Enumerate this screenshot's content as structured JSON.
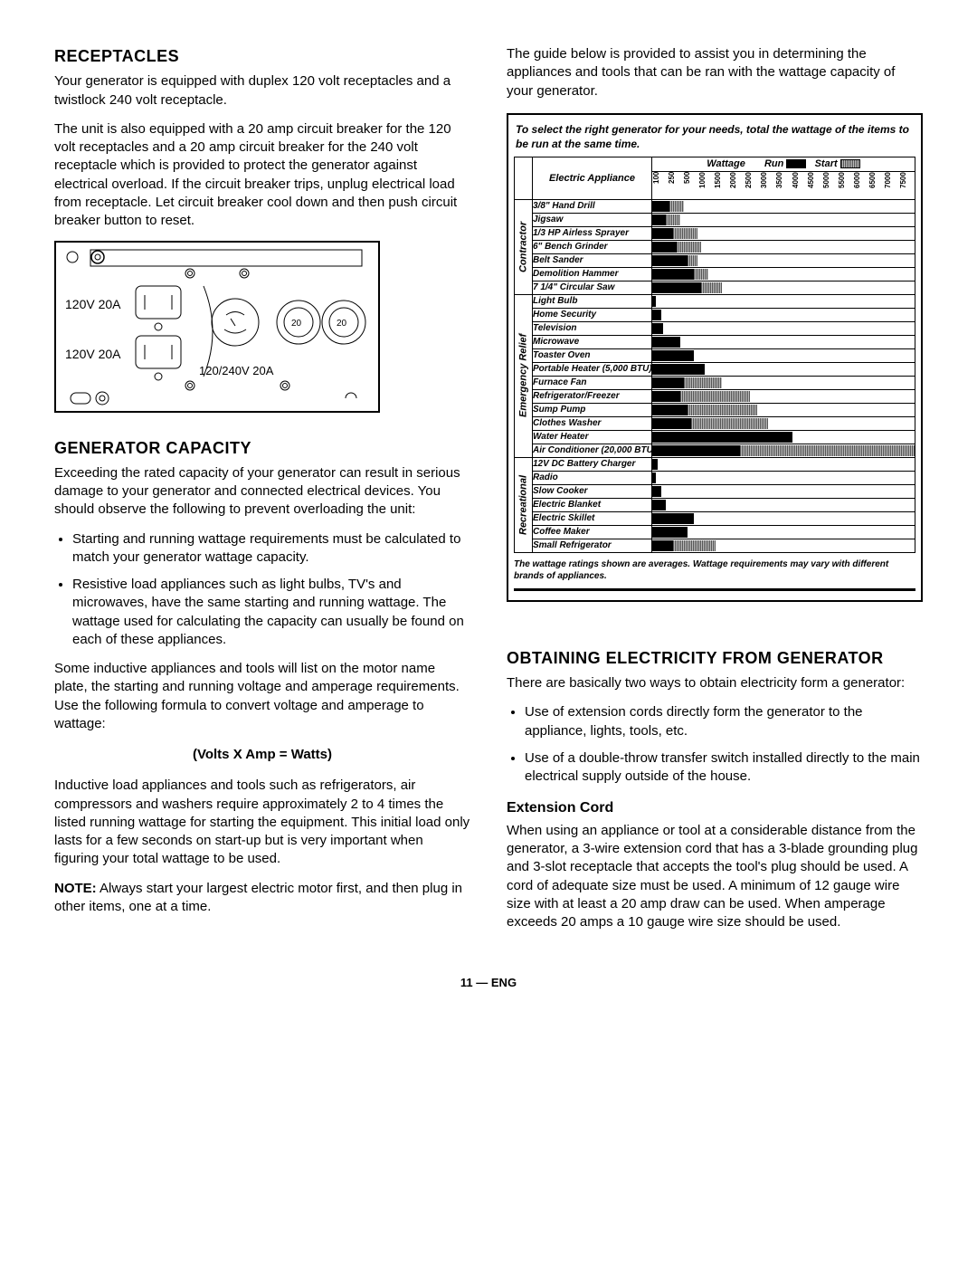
{
  "left": {
    "h_receptacles": "RECEPTACLES",
    "p1": "Your generator is equipped with duplex 120 volt receptacles and a twistlock 240 volt receptacle.",
    "p2": "The unit is also equipped with a 20 amp circuit breaker for the 120 volt receptacles and a 20 amp circuit breaker for the 240 volt receptacle which is provided to protect the generator against electrical overload. If the circuit breaker trips, unplug electrical load from receptacle. Let circuit breaker cool down and then push circuit breaker button to reset.",
    "diagram": {
      "label_120a": "120V 20A",
      "label_120b": "120V 20A",
      "label_240": "120/240V 20A"
    },
    "h_capacity": "GENERATOR CAPACITY",
    "p3": "Exceeding the rated capacity of your generator can result in serious damage to your generator and connected electrical devices. You should observe the following to prevent overloading the unit:",
    "bullets1": [
      "Starting and running wattage requirements must be calculated to match your generator wattage capacity.",
      "Resistive load appliances such as light bulbs, TV's and microwaves, have the same starting and running wattage. The wattage used for calculating the capacity can usually be found on each of these appliances."
    ],
    "p4": "Some inductive appliances and tools will list on the motor name plate, the starting and running voltage and amperage requirements. Use the following formula to convert voltage and amperage to wattage:",
    "formula": "(Volts X Amp = Watts)",
    "p5": "Inductive load appliances and tools such as refrigerators, air compressors and washers require approximately 2 to 4 times the listed running wattage for starting the equipment. This initial load only lasts for a few seconds on start-up but is very important when figuring your total wattage to be used.",
    "note_label": "NOTE:",
    "note": " Always start your largest electric motor first, and then plug in other items, one at a time."
  },
  "right": {
    "p_intro": "The guide below is provided to assist you in determining the appliances and tools that can be ran with the wattage capacity of your generator.",
    "chart": {
      "title": "To select the right generator for your needs, total the wattage of the items to be run at the same time.",
      "head_wattage": "Wattage",
      "head_run": "Run",
      "head_start": "Start",
      "head_appliance": "Electric Appliance",
      "max_watts": 7500,
      "ticks": [
        "100",
        "250",
        "500",
        "1000",
        "1500",
        "2000",
        "2500",
        "3000",
        "3500",
        "4000",
        "4500",
        "5000",
        "5500",
        "6000",
        "6500",
        "7000",
        "7500"
      ],
      "categories": [
        {
          "name": "Contractor",
          "items": [
            {
              "name": "3/8\" Hand Drill",
              "run": 500,
              "start": 900
            },
            {
              "name": "Jigsaw",
              "run": 400,
              "start": 800
            },
            {
              "name": "1/3 HP Airless Sprayer",
              "run": 600,
              "start": 1300
            },
            {
              "name": "6\" Bench Grinder",
              "run": 700,
              "start": 1400
            },
            {
              "name": "Belt Sander",
              "run": 1000,
              "start": 1300
            },
            {
              "name": "Demolition Hammer",
              "run": 1200,
              "start": 1600
            },
            {
              "name": "7 1/4\" Circular Saw",
              "run": 1400,
              "start": 2000
            }
          ]
        },
        {
          "name": "Emergency Relief",
          "items": [
            {
              "name": "Light Bulb",
              "run": 100,
              "start": 100
            },
            {
              "name": "Home Security",
              "run": 250,
              "start": 250
            },
            {
              "name": "Television",
              "run": 300,
              "start": 300
            },
            {
              "name": "Microwave",
              "run": 800,
              "start": 800
            },
            {
              "name": "Toaster Oven",
              "run": 1200,
              "start": 1200
            },
            {
              "name": "Portable Heater (5,000 BTU)",
              "run": 1500,
              "start": 1500
            },
            {
              "name": "Furnace Fan",
              "run": 900,
              "start": 2000
            },
            {
              "name": "Refrigerator/Freezer",
              "run": 800,
              "start": 2800
            },
            {
              "name": "Sump Pump",
              "run": 1000,
              "start": 3000
            },
            {
              "name": "Clothes Washer",
              "run": 1100,
              "start": 3300
            },
            {
              "name": "Water Heater",
              "run": 4000,
              "start": 4000
            },
            {
              "name": "Air Conditioner (20,000 BTU)",
              "run": 2500,
              "start": 7500
            }
          ]
        },
        {
          "name": "Recreational",
          "items": [
            {
              "name": "12V DC Battery Charger",
              "run": 150,
              "start": 150
            },
            {
              "name": "Radio",
              "run": 100,
              "start": 100
            },
            {
              "name": "Slow Cooker",
              "run": 250,
              "start": 250
            },
            {
              "name": "Electric Blanket",
              "run": 400,
              "start": 400
            },
            {
              "name": "Electric Skillet",
              "run": 1200,
              "start": 1200
            },
            {
              "name": "Coffee Maker",
              "run": 1000,
              "start": 1000
            },
            {
              "name": "Small Refrigerator",
              "run": 600,
              "start": 1800
            }
          ]
        }
      ],
      "footnote": "The wattage ratings shown are averages. Wattage requirements may vary with different brands of appliances."
    },
    "h_obtain": "OBTAINING ELECTRICITY FROM GENERATOR",
    "p_obtain": "There are basically two ways to obtain electricity form a generator:",
    "bullets2": [
      "Use of extension cords directly form the generator to the appliance, lights, tools, etc.",
      "Use of a double-throw transfer switch installed directly to the main electrical supply outside of the house."
    ],
    "h_ext": "Extension Cord",
    "p_ext": "When using an appliance or tool at a considerable distance from the generator, a 3-wire extension cord that has a 3-blade grounding plug and 3-slot receptacle that accepts the tool's plug should be used. A cord of adequate size must be used. A minimum of 12 gauge wire size with at least a 20 amp draw can be used. When amperage exceeds 20 amps a 10 gauge wire size should be used."
  },
  "footer": "11 — ENG"
}
